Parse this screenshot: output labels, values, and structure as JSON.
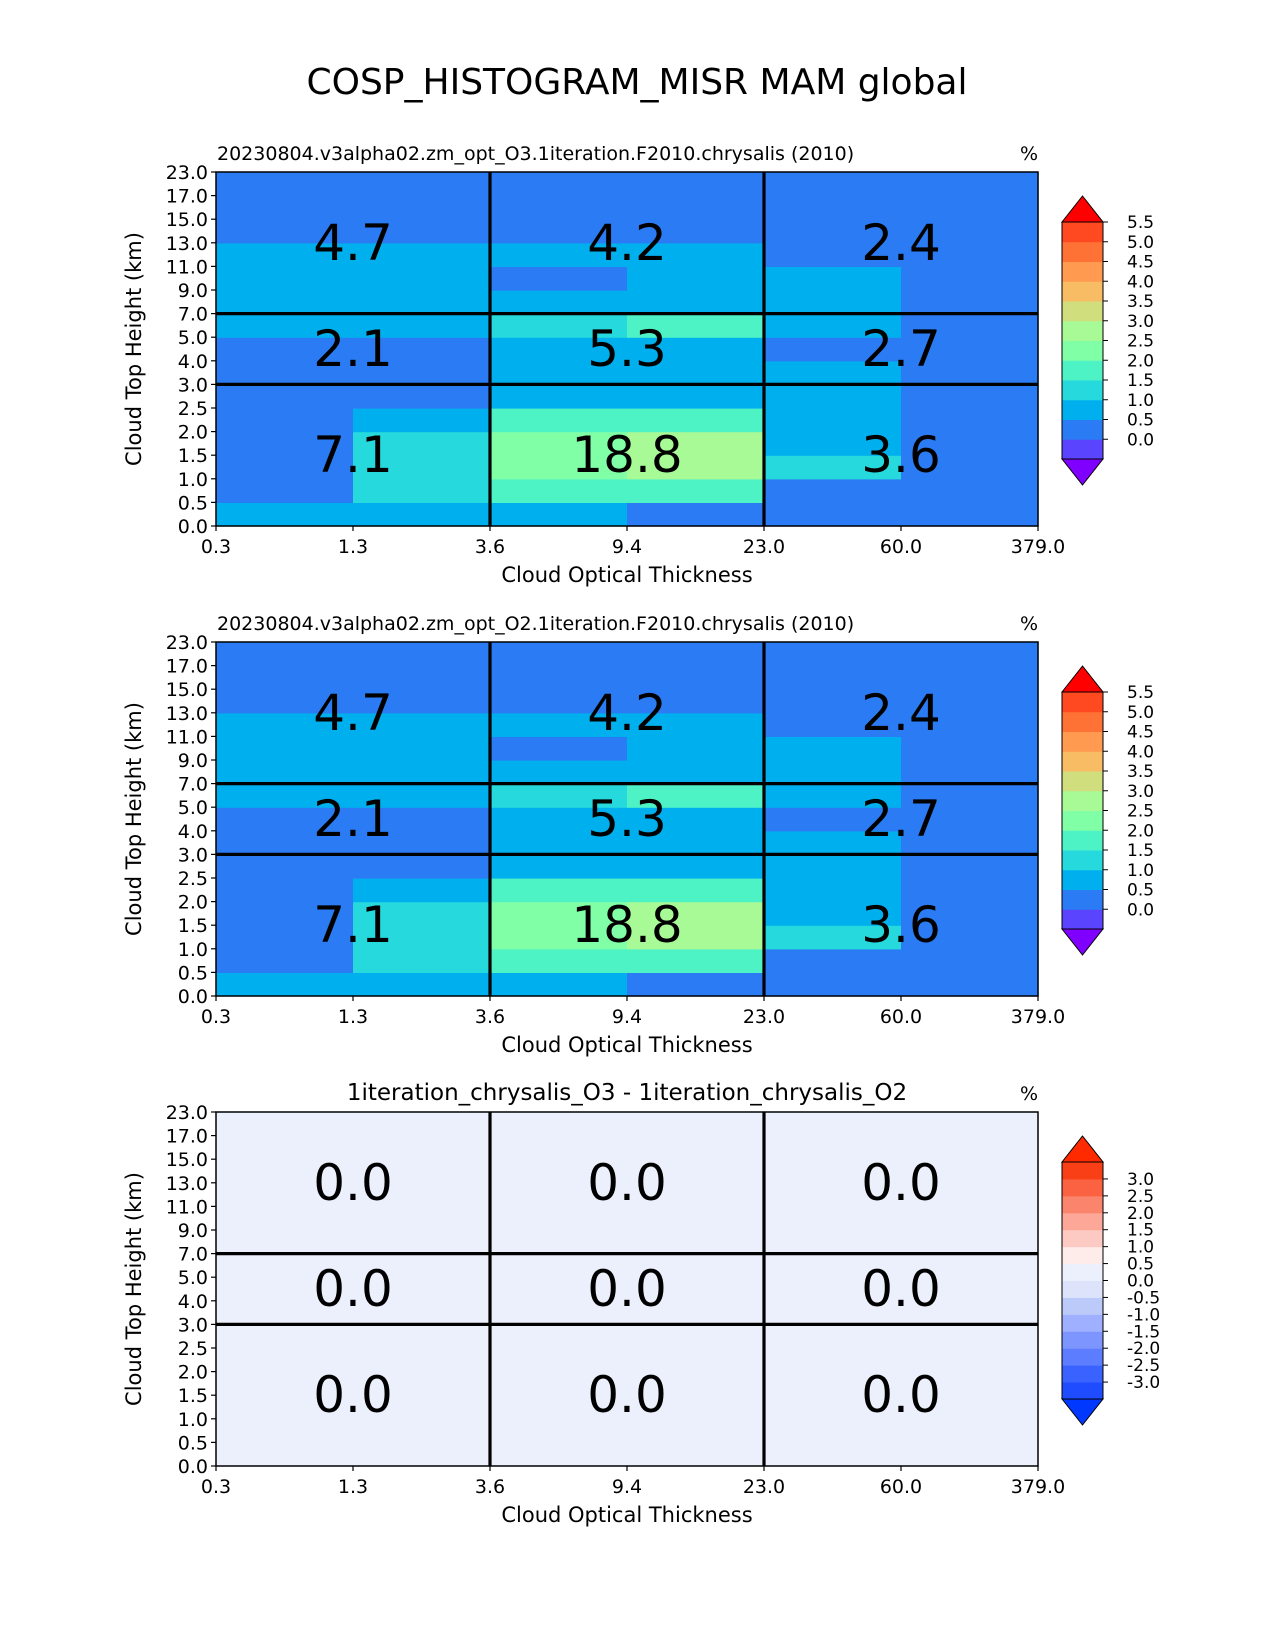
{
  "figure": {
    "title": "COSP_HISTOGRAM_MISR MAM global"
  },
  "chart_data": [
    {
      "type": "heatmap",
      "title": "20230804.v3alpha02.zm_opt_O3.1iteration.F2010.chrysalis (2010)",
      "units": "%",
      "xlabel": "Cloud Optical Thickness",
      "ylabel": "Cloud Top Height (km)",
      "x_ticks": [
        "0.3",
        "1.3",
        "3.6",
        "9.4",
        "23.0",
        "60.0",
        "379.0"
      ],
      "y_ticks": [
        "0.0",
        "0.5",
        "1.0",
        "1.5",
        "2.0",
        "2.5",
        "3.0",
        "4.0",
        "5.0",
        "7.0",
        "9.0",
        "11.0",
        "13.0",
        "15.0",
        "17.0",
        "23.0"
      ],
      "grid_values": [
        [
          0.8,
          0.8,
          0.5,
          0.2,
          0.2,
          0.2
        ],
        [
          0.2,
          1.4,
          1.6,
          1.6,
          0.2,
          0.2
        ],
        [
          0.2,
          1.4,
          2.3,
          2.8,
          1.0,
          0.2
        ],
        [
          0.2,
          1.4,
          2.3,
          2.8,
          0.9,
          0.2
        ],
        [
          0.2,
          0.9,
          1.9,
          1.9,
          0.9,
          0.2
        ],
        [
          0.2,
          0.2,
          0.9,
          0.9,
          0.9,
          0.2
        ],
        [
          0.2,
          0.2,
          0.9,
          0.9,
          0.9,
          0.2
        ],
        [
          0.2,
          0.2,
          0.9,
          0.9,
          0.2,
          0.2
        ],
        [
          0.8,
          0.8,
          1.4,
          1.9,
          0.8,
          0.2
        ],
        [
          0.8,
          0.8,
          0.8,
          0.8,
          0.8,
          0.2
        ],
        [
          0.8,
          0.8,
          0.3,
          0.8,
          0.8,
          0.2
        ],
        [
          0.8,
          0.8,
          0.8,
          0.8,
          0.2,
          0.2
        ],
        [
          0.2,
          0.2,
          0.2,
          0.2,
          0.2,
          0.2
        ],
        [
          0.2,
          0.2,
          0.2,
          0.2,
          0.2,
          0.2
        ],
        [
          0.2,
          0.2,
          0.2,
          0.2,
          0.2,
          0.2
        ]
      ],
      "box_sums": [
        {
          "row": "high",
          "col": "thin",
          "label": "4.7"
        },
        {
          "row": "high",
          "col": "medium",
          "label": "4.2"
        },
        {
          "row": "high",
          "col": "thick",
          "label": "2.4"
        },
        {
          "row": "mid",
          "col": "thin",
          "label": "2.1"
        },
        {
          "row": "mid",
          "col": "medium",
          "label": "5.3"
        },
        {
          "row": "mid",
          "col": "thick",
          "label": "2.7"
        },
        {
          "row": "low",
          "col": "thin",
          "label": "7.1"
        },
        {
          "row": "low",
          "col": "medium",
          "label": "18.8"
        },
        {
          "row": "low",
          "col": "thick",
          "label": "3.6"
        }
      ],
      "colorbar": {
        "levels": [
          -0.5,
          0.0,
          0.5,
          1.0,
          1.5,
          2.0,
          2.5,
          3.0,
          3.5,
          4.0,
          4.5,
          5.0,
          5.5,
          6.0
        ],
        "colors": [
          "#5b44fe",
          "#2b7cf4",
          "#00b0ee",
          "#25d9dd",
          "#4ef3c5",
          "#80ffa6",
          "#a7fa95",
          "#d0de7e",
          "#f8bd64",
          "#ff9a50",
          "#ff7236",
          "#ff4920"
        ],
        "under_color": "#8000ff",
        "over_color": "#ff0000",
        "tick_labels": [
          "0.0",
          "0.5",
          "1.0",
          "1.5",
          "2.0",
          "2.5",
          "3.0",
          "3.5",
          "4.0",
          "4.5",
          "5.0",
          "5.5"
        ]
      }
    },
    {
      "type": "heatmap",
      "title": "20230804.v3alpha02.zm_opt_O2.1iteration.F2010.chrysalis (2010)",
      "units": "%",
      "xlabel": "Cloud Optical Thickness",
      "ylabel": "Cloud Top Height (km)",
      "x_ticks": [
        "0.3",
        "1.3",
        "3.6",
        "9.4",
        "23.0",
        "60.0",
        "379.0"
      ],
      "y_ticks": [
        "0.0",
        "0.5",
        "1.0",
        "1.5",
        "2.0",
        "2.5",
        "3.0",
        "4.0",
        "5.0",
        "7.0",
        "9.0",
        "11.0",
        "13.0",
        "15.0",
        "17.0",
        "23.0"
      ],
      "grid_values": [
        [
          0.8,
          0.8,
          0.5,
          0.2,
          0.2,
          0.2
        ],
        [
          0.2,
          1.4,
          1.6,
          1.6,
          0.2,
          0.2
        ],
        [
          0.2,
          1.4,
          2.3,
          2.8,
          1.0,
          0.2
        ],
        [
          0.2,
          1.4,
          2.3,
          2.8,
          0.9,
          0.2
        ],
        [
          0.2,
          0.9,
          1.9,
          1.9,
          0.9,
          0.2
        ],
        [
          0.2,
          0.2,
          0.9,
          0.9,
          0.9,
          0.2
        ],
        [
          0.2,
          0.2,
          0.9,
          0.9,
          0.9,
          0.2
        ],
        [
          0.2,
          0.2,
          0.9,
          0.9,
          0.2,
          0.2
        ],
        [
          0.8,
          0.8,
          1.4,
          1.9,
          0.8,
          0.2
        ],
        [
          0.8,
          0.8,
          0.8,
          0.8,
          0.8,
          0.2
        ],
        [
          0.8,
          0.8,
          0.3,
          0.8,
          0.8,
          0.2
        ],
        [
          0.8,
          0.8,
          0.8,
          0.8,
          0.2,
          0.2
        ],
        [
          0.2,
          0.2,
          0.2,
          0.2,
          0.2,
          0.2
        ],
        [
          0.2,
          0.2,
          0.2,
          0.2,
          0.2,
          0.2
        ],
        [
          0.2,
          0.2,
          0.2,
          0.2,
          0.2,
          0.2
        ]
      ],
      "box_sums": [
        {
          "row": "high",
          "col": "thin",
          "label": "4.7"
        },
        {
          "row": "high",
          "col": "medium",
          "label": "4.2"
        },
        {
          "row": "high",
          "col": "thick",
          "label": "2.4"
        },
        {
          "row": "mid",
          "col": "thin",
          "label": "2.1"
        },
        {
          "row": "mid",
          "col": "medium",
          "label": "5.3"
        },
        {
          "row": "mid",
          "col": "thick",
          "label": "2.7"
        },
        {
          "row": "low",
          "col": "thin",
          "label": "7.1"
        },
        {
          "row": "low",
          "col": "medium",
          "label": "18.8"
        },
        {
          "row": "low",
          "col": "thick",
          "label": "3.6"
        }
      ],
      "colorbar": {
        "levels": [
          -0.5,
          0.0,
          0.5,
          1.0,
          1.5,
          2.0,
          2.5,
          3.0,
          3.5,
          4.0,
          4.5,
          5.0,
          5.5,
          6.0
        ],
        "colors": [
          "#5b44fe",
          "#2b7cf4",
          "#00b0ee",
          "#25d9dd",
          "#4ef3c5",
          "#80ffa6",
          "#a7fa95",
          "#d0de7e",
          "#f8bd64",
          "#ff9a50",
          "#ff7236",
          "#ff4920"
        ],
        "under_color": "#8000ff",
        "over_color": "#ff0000",
        "tick_labels": [
          "0.0",
          "0.5",
          "1.0",
          "1.5",
          "2.0",
          "2.5",
          "3.0",
          "3.5",
          "4.0",
          "4.5",
          "5.0",
          "5.5"
        ]
      }
    },
    {
      "type": "heatmap",
      "title": "1iteration_chrysalis_O3 - 1iteration_chrysalis_O2",
      "units": "%",
      "xlabel": "Cloud Optical Thickness",
      "ylabel": "Cloud Top Height (km)",
      "x_ticks": [
        "0.3",
        "1.3",
        "3.6",
        "9.4",
        "23.0",
        "60.0",
        "379.0"
      ],
      "y_ticks": [
        "0.0",
        "0.5",
        "1.0",
        "1.5",
        "2.0",
        "2.5",
        "3.0",
        "4.0",
        "5.0",
        "7.0",
        "9.0",
        "11.0",
        "13.0",
        "15.0",
        "17.0",
        "23.0"
      ],
      "grid_values": [
        [
          0.0,
          0.0,
          0.0,
          0.0,
          0.0,
          0.0
        ],
        [
          0.0,
          0.0,
          0.0,
          0.0,
          0.0,
          0.0
        ],
        [
          0.0,
          0.0,
          0.0,
          0.0,
          0.0,
          0.0
        ],
        [
          0.0,
          0.0,
          0.0,
          0.0,
          0.0,
          0.0
        ],
        [
          0.0,
          0.0,
          0.0,
          0.0,
          0.0,
          0.0
        ],
        [
          0.0,
          0.0,
          0.0,
          0.0,
          0.0,
          0.0
        ],
        [
          0.0,
          0.0,
          0.0,
          0.0,
          0.0,
          0.0
        ],
        [
          0.0,
          0.0,
          0.0,
          0.0,
          0.0,
          0.0
        ],
        [
          0.0,
          0.0,
          0.0,
          0.0,
          0.0,
          0.0
        ],
        [
          0.0,
          0.0,
          0.0,
          0.0,
          0.0,
          0.0
        ],
        [
          0.0,
          0.0,
          0.0,
          0.0,
          0.0,
          0.0
        ],
        [
          0.0,
          0.0,
          0.0,
          0.0,
          0.0,
          0.0
        ],
        [
          0.0,
          0.0,
          0.0,
          0.0,
          0.0,
          0.0
        ],
        [
          0.0,
          0.0,
          0.0,
          0.0,
          0.0,
          0.0
        ],
        [
          0.0,
          0.0,
          0.0,
          0.0,
          0.0,
          0.0
        ]
      ],
      "box_sums": [
        {
          "row": "high",
          "col": "thin",
          "label": "0.0"
        },
        {
          "row": "high",
          "col": "medium",
          "label": "0.0"
        },
        {
          "row": "high",
          "col": "thick",
          "label": "0.0"
        },
        {
          "row": "mid",
          "col": "thin",
          "label": "0.0"
        },
        {
          "row": "mid",
          "col": "medium",
          "label": "0.0"
        },
        {
          "row": "mid",
          "col": "thick",
          "label": "0.0"
        },
        {
          "row": "low",
          "col": "thin",
          "label": "0.0"
        },
        {
          "row": "low",
          "col": "medium",
          "label": "0.0"
        },
        {
          "row": "low",
          "col": "thick",
          "label": "0.0"
        }
      ],
      "colorbar": {
        "levels": [
          -3.25,
          -2.75,
          -2.25,
          -1.75,
          -1.25,
          -0.75,
          -0.25,
          0.0,
          0.25,
          0.75,
          1.25,
          1.75,
          2.25,
          2.75,
          3.25
        ],
        "colors": [
          "#1f4cff",
          "#3a62ff",
          "#5c7dff",
          "#7d96ff",
          "#9eb0ff",
          "#bccafa",
          "#dde3fb",
          "#eceffc",
          "#fdecea",
          "#fccac2",
          "#fca797",
          "#fb846c",
          "#fa6241",
          "#f93f16"
        ],
        "under_color": "#0038ff",
        "over_color": "#ff2a00",
        "tick_labels": [
          "-3.0",
          "-2.5",
          "-2.0",
          "-1.5",
          "-1.0",
          "-0.5",
          "0.0",
          "0.5",
          "1.0",
          "1.5",
          "2.0",
          "2.5",
          "3.0"
        ]
      }
    }
  ]
}
